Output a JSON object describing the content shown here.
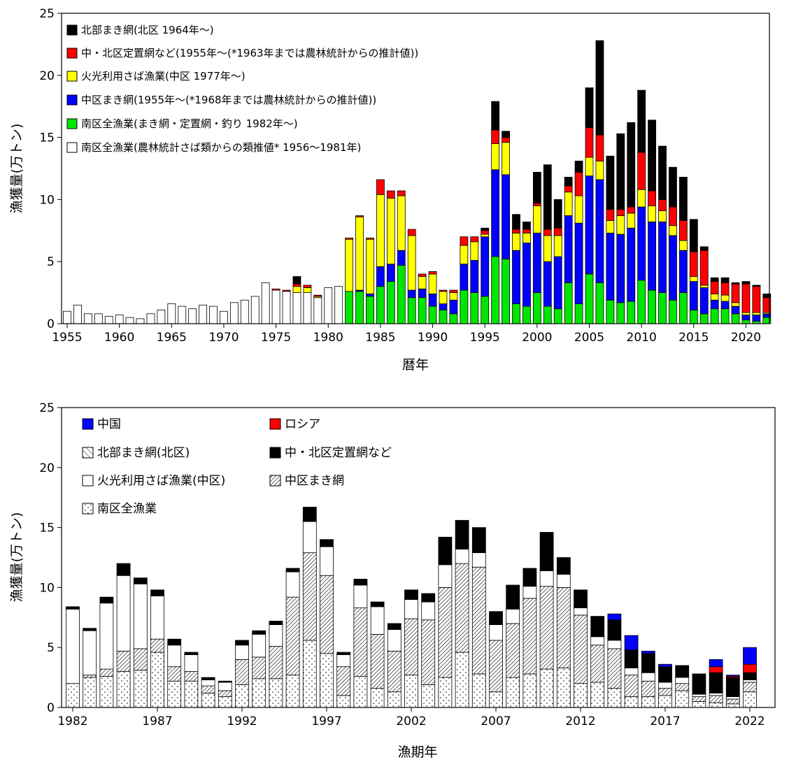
{
  "chart_data": [
    {
      "type": "bar",
      "stacked": true,
      "xlabel": "暦年",
      "ylabel": "漁獲量(万トン)",
      "ylim": [
        0,
        25
      ],
      "yticks": [
        0,
        5,
        10,
        15,
        20,
        25
      ],
      "xticks": [
        1955,
        1960,
        1965,
        1970,
        1975,
        1980,
        1985,
        1990,
        1995,
        2000,
        2005,
        2010,
        2015,
        2020
      ],
      "legend_position": "top-left",
      "x": [
        1955,
        1956,
        1957,
        1958,
        1959,
        1960,
        1961,
        1962,
        1963,
        1964,
        1965,
        1966,
        1967,
        1968,
        1969,
        1970,
        1971,
        1972,
        1973,
        1974,
        1975,
        1976,
        1977,
        1978,
        1979,
        1980,
        1981,
        1982,
        1983,
        1984,
        1985,
        1986,
        1987,
        1988,
        1989,
        1990,
        1991,
        1992,
        1993,
        1994,
        1995,
        1996,
        1997,
        1998,
        1999,
        2000,
        2001,
        2002,
        2003,
        2004,
        2005,
        2006,
        2007,
        2008,
        2009,
        2010,
        2011,
        2012,
        2013,
        2014,
        2015,
        2016,
        2017,
        2018,
        2019,
        2020,
        2021,
        2022
      ],
      "series": [
        {
          "name": "南区全漁業(農林統計さば類からの類推値* 1956～1981年)",
          "color": "#ffffff",
          "values": [
            1.0,
            1.5,
            0.8,
            0.8,
            0.6,
            0.7,
            0.5,
            0.4,
            0.8,
            1.1,
            1.6,
            1.4,
            1.2,
            1.5,
            1.4,
            1.0,
            1.7,
            1.9,
            2.2,
            3.3,
            2.7,
            2.6,
            2.5,
            2.5,
            2.1,
            2.9,
            3.0,
            0,
            0,
            0,
            0,
            0,
            0,
            0,
            0,
            0,
            0,
            0,
            0,
            0,
            0,
            0,
            0,
            0,
            0,
            0,
            0,
            0,
            0,
            0,
            0,
            0,
            0,
            0,
            0,
            0,
            0,
            0,
            0,
            0,
            0,
            0,
            0,
            0,
            0,
            0,
            0,
            0
          ]
        },
        {
          "name": "南区全漁業(まき網・定置網・釣り 1982年～)",
          "color": "#00e600",
          "values": [
            0,
            0,
            0,
            0,
            0,
            0,
            0,
            0,
            0,
            0,
            0,
            0,
            0,
            0,
            0,
            0,
            0,
            0,
            0,
            0,
            0,
            0,
            0,
            0,
            0,
            0,
            0,
            2.6,
            2.6,
            2.2,
            3.0,
            3.4,
            4.7,
            2.1,
            2.1,
            1.4,
            1.1,
            0.8,
            2.7,
            2.5,
            2.2,
            5.4,
            5.2,
            1.6,
            1.4,
            2.5,
            1.4,
            1.2,
            3.3,
            1.6,
            4.0,
            3.3,
            1.9,
            1.7,
            1.8,
            3.5,
            2.7,
            2.5,
            1.9,
            2.5,
            1.1,
            0.8,
            1.2,
            1.2,
            0.8,
            0.3,
            0.2,
            0.5
          ]
        },
        {
          "name": "中区まき網(1955年～(*1968年までは農林統計からの推計値))",
          "color": "#0000ff",
          "values": [
            0,
            0,
            0,
            0,
            0,
            0,
            0,
            0,
            0,
            0,
            0,
            0,
            0,
            0,
            0,
            0,
            0,
            0,
            0,
            0,
            0,
            0,
            0,
            0,
            0,
            0,
            0,
            0,
            0.1,
            0.2,
            1.6,
            1.4,
            1.2,
            0.6,
            0.7,
            1.0,
            0.5,
            1.1,
            2.1,
            2.6,
            4.8,
            7.0,
            6.8,
            4.3,
            5.1,
            4.8,
            3.6,
            4.2,
            5.4,
            6.5,
            7.9,
            8.3,
            5.4,
            5.5,
            5.9,
            5.9,
            5.5,
            5.7,
            5.2,
            3.4,
            2.3,
            2.1,
            0.7,
            0.6,
            0.6,
            0.4,
            0.5,
            0.3
          ]
        },
        {
          "name": "火光利用さば漁業(中区 1977年～)",
          "color": "#ffff00",
          "values": [
            0,
            0,
            0,
            0,
            0,
            0,
            0,
            0,
            0,
            0,
            0,
            0,
            0,
            0,
            0,
            0,
            0,
            0,
            0,
            0,
            0,
            0,
            0.5,
            0.4,
            0.1,
            0,
            0,
            4.2,
            5.9,
            4.4,
            5.8,
            5.3,
            4.4,
            4.4,
            1.0,
            1.6,
            1.0,
            0.6,
            1.5,
            1.5,
            0.2,
            2.1,
            2.6,
            1.4,
            0.8,
            2.2,
            2.1,
            1.7,
            1.9,
            2.2,
            1.5,
            1.5,
            1.0,
            1.5,
            1.2,
            1.4,
            1.3,
            0.9,
            0.8,
            0.8,
            0.4,
            0.2,
            0.5,
            0.5,
            0.3,
            0.2,
            0.2,
            0.1
          ]
        },
        {
          "name": "中・北区定置網など(1955年～(*1963年までは農林統計からの推計値))",
          "color": "#ff0000",
          "values": [
            0,
            0,
            0,
            0,
            0,
            0,
            0,
            0,
            0,
            0,
            0,
            0,
            0,
            0,
            0,
            0,
            0,
            0,
            0,
            0,
            0.1,
            0.1,
            0.2,
            0.2,
            0.1,
            0,
            0,
            0.1,
            0.1,
            0.1,
            1.2,
            0.6,
            0.4,
            0.5,
            0.2,
            0.2,
            0.1,
            0.2,
            0.7,
            0.4,
            0.3,
            1.1,
            0.4,
            0.3,
            0.3,
            0.2,
            0.5,
            0.6,
            0.5,
            1.9,
            2.4,
            2.1,
            0.9,
            0.5,
            0.5,
            3.0,
            1.2,
            0.9,
            1.5,
            1.6,
            2.0,
            2.8,
            1.0,
            1.0,
            1.5,
            2.3,
            2.1,
            1.2
          ]
        },
        {
          "name": "北部まき網(北区 1964年～)",
          "color": "#000000",
          "values": [
            0,
            0,
            0,
            0,
            0,
            0,
            0,
            0,
            0,
            0,
            0,
            0,
            0,
            0,
            0,
            0,
            0,
            0,
            0,
            0,
            0,
            0,
            0.6,
            0,
            0,
            0,
            0,
            0,
            0,
            0,
            0,
            0,
            0,
            0,
            0,
            0,
            0,
            0,
            0,
            0,
            0.2,
            2.3,
            0.5,
            1.2,
            0.6,
            2.5,
            5.2,
            2.3,
            0.7,
            0.9,
            3.2,
            7.6,
            4.3,
            6.1,
            6.8,
            5.0,
            5.7,
            4.3,
            3.2,
            3.5,
            2.6,
            0.3,
            0.3,
            0.4,
            0.1,
            0.2,
            0.1,
            0.3
          ]
        }
      ]
    },
    {
      "type": "bar",
      "stacked": true,
      "xlabel": "漁期年",
      "ylabel": "漁獲量(万トン)",
      "ylim": [
        0,
        25
      ],
      "yticks": [
        0,
        5,
        10,
        15,
        20,
        25
      ],
      "xticks": [
        1982,
        1987,
        1992,
        1997,
        2002,
        2007,
        2012,
        2017,
        2022
      ],
      "legend_position": "top-left",
      "x": [
        1982,
        1983,
        1984,
        1985,
        1986,
        1987,
        1988,
        1989,
        1990,
        1991,
        1992,
        1993,
        1994,
        1995,
        1996,
        1997,
        1998,
        1999,
        2000,
        2001,
        2002,
        2003,
        2004,
        2005,
        2006,
        2007,
        2008,
        2009,
        2010,
        2011,
        2012,
        2013,
        2014,
        2015,
        2016,
        2017,
        2018,
        2019,
        2020,
        2021,
        2022
      ],
      "series": [
        {
          "name": "南区全漁業",
          "pattern": "dots",
          "values": [
            2.0,
            2.5,
            2.6,
            3.0,
            3.1,
            4.6,
            2.2,
            2.2,
            1.2,
            0.9,
            1.9,
            2.4,
            2.4,
            2.7,
            5.6,
            4.5,
            1.0,
            2.6,
            1.6,
            1.3,
            2.7,
            1.9,
            2.5,
            4.6,
            2.8,
            1.3,
            2.5,
            2.8,
            3.2,
            3.3,
            2.0,
            2.1,
            1.6,
            0.9,
            0.9,
            1.0,
            1.4,
            0.5,
            0.4,
            0.3,
            1.3
          ]
        },
        {
          "name": "中区まき網",
          "pattern": "hatch-dense",
          "values": [
            0.0,
            0.2,
            0.6,
            1.7,
            1.8,
            1.1,
            1.2,
            0.8,
            0.6,
            0.5,
            2.1,
            1.8,
            2.7,
            6.5,
            7.3,
            6.5,
            2.4,
            5.7,
            4.5,
            3.4,
            4.7,
            5.4,
            7.5,
            7.4,
            8.9,
            4.3,
            4.5,
            6.3,
            6.9,
            6.7,
            5.7,
            3.1,
            3.3,
            1.8,
            1.3,
            0.6,
            0.6,
            0.4,
            0.6,
            0.4,
            0.8
          ]
        },
        {
          "name": "火光利用さば漁業(中区)",
          "pattern": "white",
          "values": [
            6.2,
            3.7,
            5.5,
            6.3,
            5.4,
            3.6,
            1.8,
            1.4,
            0.5,
            0.7,
            1.2,
            1.9,
            1.8,
            2.1,
            2.6,
            2.4,
            1.0,
            1.9,
            2.3,
            1.8,
            1.6,
            1.5,
            1.9,
            1.2,
            1.2,
            1.3,
            1.2,
            1.0,
            1.3,
            1.1,
            0.6,
            0.7,
            0.7,
            0.6,
            0.7,
            0.5,
            0.5,
            0.2,
            0.2,
            0.2,
            0.2
          ]
        },
        {
          "name": "北部まき網(北区)",
          "pattern": "hatch-sparse",
          "values": [
            0,
            0,
            0,
            0,
            0,
            0,
            0,
            0,
            0,
            0,
            0,
            0,
            0,
            0,
            0,
            0,
            0,
            0,
            0,
            0,
            0,
            0,
            0,
            0,
            0,
            0,
            0,
            0,
            0,
            0,
            0,
            0,
            0,
            0,
            0,
            0,
            0,
            0,
            0,
            0,
            0
          ]
        },
        {
          "name": "中・北区定置網など",
          "color": "#000000",
          "values": [
            0.2,
            0.2,
            0.5,
            1.0,
            0.5,
            0.5,
            0.5,
            0.2,
            0.2,
            0.1,
            0.4,
            0.3,
            0.3,
            0.3,
            1.2,
            0.6,
            0.2,
            0.5,
            0.4,
            0.5,
            0.8,
            0.7,
            2.3,
            2.4,
            2.1,
            1.1,
            2.0,
            1.5,
            3.2,
            1.4,
            1.5,
            1.7,
            1.7,
            1.5,
            1.6,
            1.3,
            1.0,
            1.7,
            1.7,
            1.6,
            0.6
          ]
        },
        {
          "name": "ロシア",
          "color": "#ff0000",
          "values": [
            0,
            0,
            0,
            0,
            0,
            0,
            0,
            0,
            0,
            0,
            0,
            0,
            0,
            0,
            0,
            0,
            0,
            0,
            0,
            0,
            0,
            0,
            0,
            0,
            0,
            0,
            0,
            0,
            0,
            0,
            0,
            0,
            0,
            0,
            0,
            0,
            0,
            0,
            0.5,
            0.1,
            0.7
          ]
        },
        {
          "name": "中国",
          "color": "#0000ff",
          "values": [
            0,
            0,
            0,
            0,
            0,
            0,
            0,
            0,
            0,
            0,
            0,
            0,
            0,
            0,
            0,
            0,
            0,
            0,
            0,
            0,
            0,
            0,
            0,
            0,
            0,
            0,
            0,
            0,
            0,
            0,
            0,
            0,
            0.5,
            1.2,
            0.2,
            0.2,
            0,
            0,
            0.6,
            0.1,
            1.4
          ]
        }
      ]
    }
  ]
}
